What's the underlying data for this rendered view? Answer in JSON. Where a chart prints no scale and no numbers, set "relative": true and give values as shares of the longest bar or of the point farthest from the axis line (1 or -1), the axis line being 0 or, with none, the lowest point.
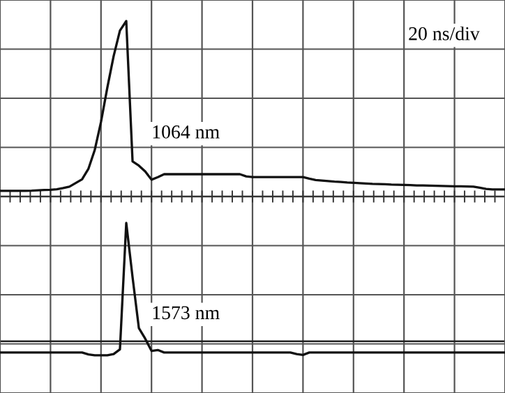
{
  "chart_data": {
    "type": "line",
    "relative": true,
    "grid": true,
    "marker": "none",
    "line_style": "solid",
    "categories": [
      null,
      null,
      null,
      null,
      null,
      null,
      null,
      null,
      null,
      null,
      null,
      null,
      null,
      null,
      null,
      null,
      null,
      null,
      null,
      null,
      null,
      null,
      null,
      null,
      null,
      null,
      null,
      null,
      null,
      null,
      null,
      null,
      null,
      null,
      null,
      null,
      null,
      null,
      null,
      null,
      null,
      null,
      null,
      null,
      null,
      null,
      null,
      null,
      null,
      null,
      null,
      null,
      null,
      null,
      null,
      null,
      null,
      null,
      null,
      null,
      null,
      null,
      null,
      null,
      null,
      null,
      null,
      null,
      null,
      null,
      null,
      null,
      null,
      null,
      null,
      null,
      null,
      null,
      null,
      null,
      null
    ],
    "series": [
      {
        "color": "#111111",
        "values": [
          0.032,
          0.032,
          0.032,
          0.032,
          0.032,
          0.033,
          0.035,
          0.037,
          0.038,
          0.041,
          0.048,
          0.056,
          0.077,
          0.098,
          0.157,
          0.264,
          0.425,
          0.62,
          0.8,
          0.946,
          1.0,
          0.2,
          0.176,
          0.143,
          0.096,
          0.11,
          0.127,
          0.127,
          0.127,
          0.127,
          0.127,
          0.127,
          0.127,
          0.127,
          0.127,
          0.127,
          0.127,
          0.127,
          0.127,
          0.115,
          0.111,
          0.111,
          0.111,
          0.111,
          0.111,
          0.111,
          0.111,
          0.111,
          0.111,
          0.102,
          0.094,
          0.091,
          0.088,
          0.085,
          0.083,
          0.08,
          0.078,
          0.076,
          0.074,
          0.072,
          0.071,
          0.07,
          0.068,
          0.067,
          0.066,
          0.065,
          0.063,
          0.063,
          0.062,
          0.061,
          0.06,
          0.059,
          0.058,
          0.058,
          0.057,
          0.056,
          0.05,
          0.043,
          0.04,
          0.04,
          0.04
        ]
      },
      {
        "color": "#111111",
        "values": [
          -0.889,
          -0.889,
          -0.889,
          -0.889,
          -0.889,
          -0.889,
          -0.889,
          -0.889,
          -0.889,
          -0.889,
          -0.889,
          -0.889,
          -0.889,
          -0.889,
          -0.9,
          -0.905,
          -0.905,
          -0.905,
          -0.898,
          -0.871,
          -0.151,
          -0.46,
          -0.75,
          -0.81,
          -0.88,
          -0.875,
          -0.889,
          -0.889,
          -0.889,
          -0.889,
          -0.889,
          -0.889,
          -0.889,
          -0.889,
          -0.889,
          -0.889,
          -0.889,
          -0.889,
          -0.889,
          -0.889,
          -0.889,
          -0.889,
          -0.889,
          -0.889,
          -0.889,
          -0.889,
          -0.889,
          -0.898,
          -0.903,
          -0.889,
          -0.889,
          -0.889,
          -0.889,
          -0.889,
          -0.889,
          -0.889,
          -0.889,
          -0.889,
          -0.889,
          -0.889,
          -0.889,
          -0.889,
          -0.889,
          -0.889,
          -0.889,
          -0.889,
          -0.889,
          -0.889,
          -0.889,
          -0.889,
          -0.889,
          -0.889,
          -0.889,
          -0.889,
          -0.889,
          -0.889,
          -0.889,
          -0.889,
          -0.889,
          -0.889,
          -0.889
        ]
      }
    ],
    "ref_lines": [
      {
        "axis": "y",
        "value": -0.825,
        "color": "#222222"
      }
    ],
    "annotations": [
      "1064 nm",
      "1573 nm",
      "20 ns/div"
    ]
  }
}
